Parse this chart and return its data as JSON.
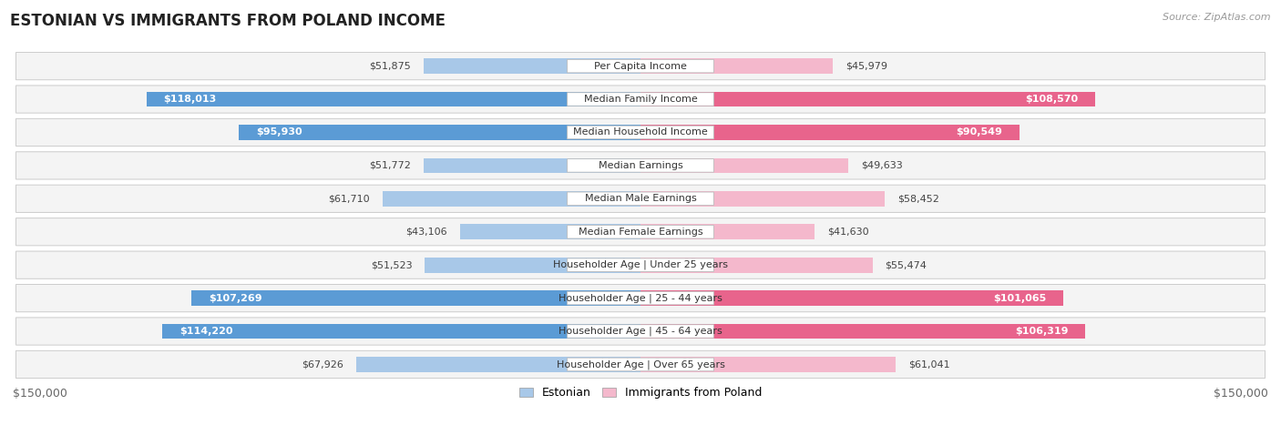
{
  "title": "ESTONIAN VS IMMIGRANTS FROM POLAND INCOME",
  "source": "Source: ZipAtlas.com",
  "categories": [
    "Per Capita Income",
    "Median Family Income",
    "Median Household Income",
    "Median Earnings",
    "Median Male Earnings",
    "Median Female Earnings",
    "Householder Age | Under 25 years",
    "Householder Age | 25 - 44 years",
    "Householder Age | 45 - 64 years",
    "Householder Age | Over 65 years"
  ],
  "estonian_values": [
    51875,
    118013,
    95930,
    51772,
    61710,
    43106,
    51523,
    107269,
    114220,
    67926
  ],
  "poland_values": [
    45979,
    108570,
    90549,
    49633,
    58452,
    41630,
    55474,
    101065,
    106319,
    61041
  ],
  "estonian_color_light": "#a8c8e8",
  "estonian_color_dark": "#5b9bd5",
  "poland_color_light": "#f4b8cc",
  "poland_color_dark": "#e8648c",
  "dark_threshold": 80000,
  "max_value": 150000,
  "row_bg_even": "#f2f2f2",
  "row_bg_odd": "#e8e8e8",
  "row_border": "#d0d0d0",
  "label_bg": "#ffffff",
  "label_border": "#cccccc",
  "title_fontsize": 12,
  "source_fontsize": 8,
  "label_fontsize": 8,
  "value_fontsize": 8,
  "axis_fontsize": 9,
  "legend_label_estonian": "Estonian",
  "legend_label_poland": "Immigrants from Poland",
  "axis_label": "$150,000"
}
